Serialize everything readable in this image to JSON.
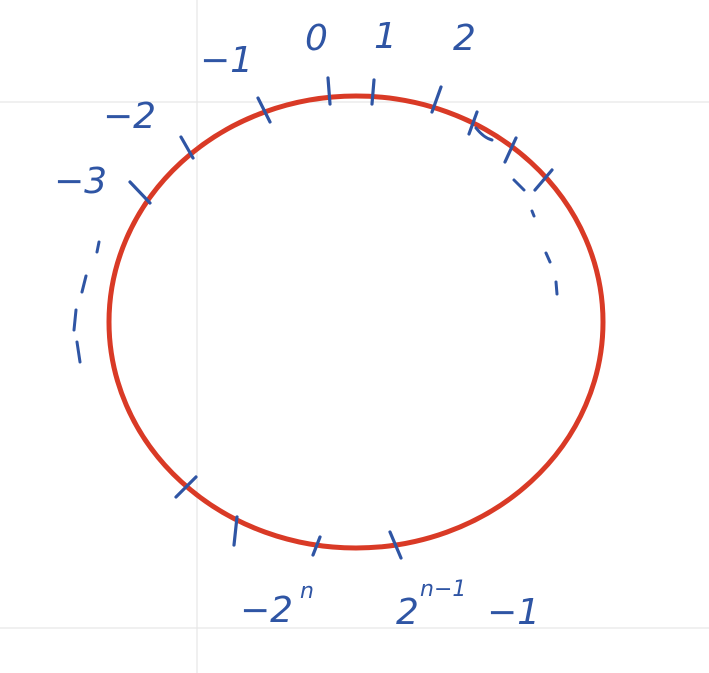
{
  "labels": {
    "zero": "0",
    "one": "1",
    "two": "2",
    "neg_one": "−1",
    "neg_two": "−2",
    "neg_three": "−3",
    "neg_pow_base": "−2",
    "neg_pow_exp": "n",
    "max_base": "2",
    "max_exp": "n−1",
    "max_tail": "−1"
  },
  "colors": {
    "ring": "#d93a26",
    "ink": "#2f55a4",
    "grid": "#e6e6e6"
  }
}
